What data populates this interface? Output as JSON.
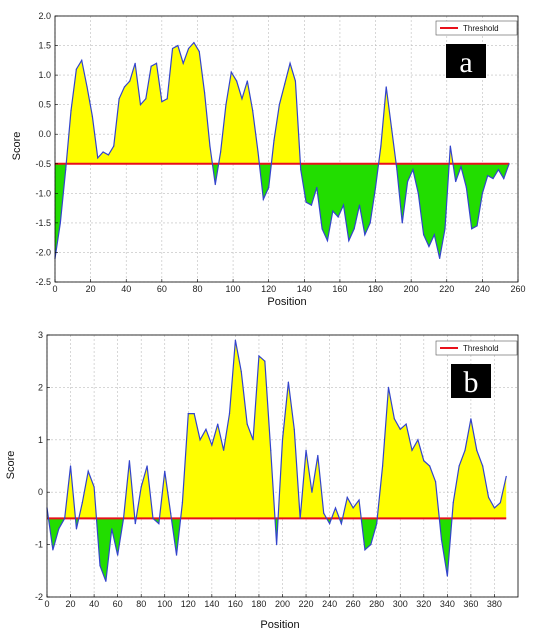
{
  "chart_data": [
    {
      "type": "area",
      "panel_tag": "a",
      "xlabel": "Position",
      "ylabel": "Score",
      "xlim": [
        0,
        260
      ],
      "ylim": [
        -2.5,
        2.0
      ],
      "xticks": [
        0,
        20,
        40,
        60,
        80,
        100,
        120,
        140,
        160,
        180,
        200,
        220,
        240,
        260
      ],
      "yticks": [
        -2.5,
        -2.0,
        -1.5,
        -1.0,
        -0.5,
        0.0,
        0.5,
        1.0,
        1.5,
        2.0
      ],
      "grid": true,
      "legend_position": "top-right",
      "threshold": -0.5,
      "threshold_label": "Threshold",
      "colors": {
        "line": "#3344cc",
        "above": "#ffff00",
        "below": "#22dd00",
        "threshold": "#e8101a"
      },
      "series": [
        {
          "x": [
            0,
            3,
            6,
            9,
            12,
            15,
            18,
            21,
            24,
            27,
            30,
            33,
            36,
            39,
            42,
            45,
            48,
            51,
            54,
            57,
            60,
            63,
            66,
            69,
            72,
            75,
            78,
            81,
            84,
            87,
            90,
            93,
            96,
            99,
            102,
            105,
            108,
            111,
            114,
            117,
            120,
            123,
            126,
            129,
            132,
            135,
            138,
            141,
            144,
            147,
            150,
            153,
            156,
            159,
            162,
            165,
            168,
            171,
            174,
            177,
            180,
            183,
            186,
            189,
            192,
            195,
            198,
            201,
            204,
            207,
            210,
            213,
            216,
            219,
            222,
            225,
            228,
            231,
            234,
            237,
            240,
            243,
            246,
            249,
            252,
            255
          ],
          "y": [
            -2.1,
            -1.5,
            -0.6,
            0.4,
            1.1,
            1.25,
            0.8,
            0.3,
            -0.4,
            -0.3,
            -0.35,
            -0.2,
            0.6,
            0.8,
            0.9,
            1.2,
            0.5,
            0.6,
            1.15,
            1.2,
            0.55,
            0.6,
            1.45,
            1.5,
            1.2,
            1.45,
            1.55,
            1.4,
            0.7,
            -0.2,
            -0.85,
            -0.3,
            0.5,
            1.05,
            0.9,
            0.6,
            0.9,
            0.4,
            -0.3,
            -1.1,
            -0.9,
            -0.1,
            0.5,
            0.85,
            1.2,
            0.9,
            -0.6,
            -1.15,
            -1.2,
            -0.9,
            -1.6,
            -1.8,
            -1.3,
            -1.4,
            -1.2,
            -1.8,
            -1.6,
            -1.2,
            -1.7,
            -1.5,
            -0.9,
            -0.2,
            0.8,
            0.1,
            -0.6,
            -1.5,
            -0.8,
            -0.6,
            -1.0,
            -1.7,
            -1.9,
            -1.7,
            -2.1,
            -1.6,
            -0.2,
            -0.8,
            -0.55,
            -0.9,
            -1.6,
            -1.55,
            -1.0,
            -0.7,
            -0.75,
            -0.6,
            -0.75,
            -0.5
          ]
        }
      ]
    },
    {
      "type": "area",
      "panel_tag": "b",
      "xlabel": "Position",
      "ylabel": "Score",
      "xlim": [
        0,
        400
      ],
      "ylim": [
        -2,
        3
      ],
      "xticks": [
        0,
        20,
        40,
        60,
        80,
        100,
        120,
        140,
        160,
        180,
        200,
        220,
        240,
        260,
        280,
        300,
        320,
        340,
        360,
        380
      ],
      "yticks": [
        -2,
        -1,
        0,
        1,
        2,
        3
      ],
      "grid": true,
      "legend_position": "top-right",
      "threshold": -0.5,
      "threshold_label": "Threshold",
      "colors": {
        "line": "#3344cc",
        "above": "#ffff00",
        "below": "#22dd00",
        "threshold": "#e8101a"
      },
      "series": [
        {
          "x": [
            0,
            5,
            10,
            15,
            20,
            25,
            30,
            35,
            40,
            45,
            50,
            55,
            60,
            65,
            70,
            75,
            80,
            85,
            90,
            95,
            100,
            105,
            110,
            115,
            120,
            125,
            130,
            135,
            140,
            145,
            150,
            155,
            160,
            165,
            170,
            175,
            180,
            185,
            190,
            195,
            200,
            205,
            210,
            215,
            220,
            225,
            230,
            235,
            240,
            245,
            250,
            255,
            260,
            265,
            270,
            275,
            280,
            285,
            290,
            295,
            300,
            305,
            310,
            315,
            320,
            325,
            330,
            335,
            340,
            345,
            350,
            355,
            360,
            365,
            370,
            375,
            380,
            385,
            390
          ],
          "y": [
            -0.3,
            -1.1,
            -0.7,
            -0.5,
            0.5,
            -0.7,
            -0.2,
            0.4,
            0.1,
            -1.4,
            -1.7,
            -0.7,
            -1.2,
            -0.5,
            0.6,
            -0.6,
            0.1,
            0.5,
            -0.5,
            -0.6,
            0.4,
            -0.4,
            -1.2,
            -0.2,
            1.5,
            1.5,
            1.0,
            1.2,
            0.9,
            1.3,
            0.8,
            1.5,
            2.9,
            2.3,
            1.3,
            1.0,
            2.6,
            2.5,
            0.8,
            -1.0,
            1.0,
            2.1,
            1.2,
            -0.5,
            0.8,
            0.0,
            0.7,
            -0.4,
            -0.6,
            -0.3,
            -0.6,
            -0.1,
            -0.3,
            -0.15,
            -1.1,
            -1.0,
            -0.6,
            0.5,
            2.0,
            1.4,
            1.2,
            1.3,
            0.8,
            1.0,
            0.6,
            0.5,
            0.2,
            -0.9,
            -1.6,
            -0.2,
            0.5,
            0.8,
            1.4,
            0.8,
            0.5,
            -0.1,
            -0.3,
            -0.2,
            0.3
          ]
        }
      ]
    }
  ]
}
